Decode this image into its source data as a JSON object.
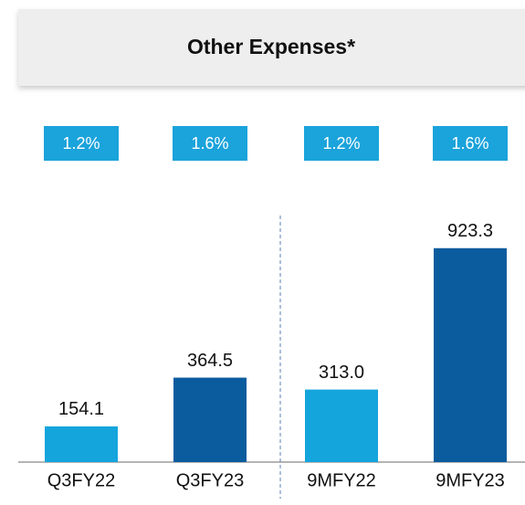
{
  "chart_data": {
    "type": "bar",
    "title": "Other Expenses*",
    "categories": [
      "Q3FY22",
      "Q3FY23",
      "9MFY22",
      "9MFY23"
    ],
    "values": [
      154.1,
      364.5,
      313.0,
      923.3
    ],
    "value_labels": [
      "154.1",
      "364.5",
      "313.0",
      "923.3"
    ],
    "colors": [
      "#14a5dc",
      "#0b5c9e",
      "#14a5dc",
      "#0b5c9e"
    ],
    "annotations": [
      "1.2%",
      "1.6%",
      "1.2%",
      "1.6%"
    ],
    "annotation_color": "#1ba3db",
    "ylim": [
      0,
      950
    ]
  }
}
